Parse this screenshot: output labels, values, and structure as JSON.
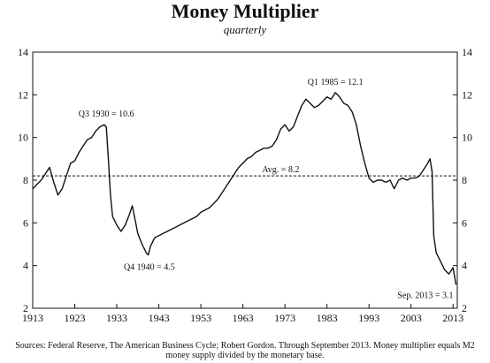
{
  "chart_data": {
    "type": "line",
    "title": "Money Multiplier",
    "subtitle": "quarterly",
    "x_ticks": [
      1913,
      1923,
      1933,
      1943,
      1953,
      1963,
      1973,
      1983,
      1993,
      2003,
      2013
    ],
    "y_ticks": [
      2,
      4,
      6,
      8,
      10,
      12,
      14
    ],
    "xlim": [
      1913,
      2014
    ],
    "ylim": [
      2,
      14
    ],
    "series": [
      {
        "values": [
          [
            1913,
            7.6
          ],
          [
            1914,
            7.8
          ],
          [
            1915,
            8.0
          ],
          [
            1916,
            8.3
          ],
          [
            1917,
            8.6
          ],
          [
            1918,
            7.9
          ],
          [
            1919,
            7.3
          ],
          [
            1920,
            7.6
          ],
          [
            1921,
            8.2
          ],
          [
            1922,
            8.8
          ],
          [
            1923,
            8.9
          ],
          [
            1924,
            9.3
          ],
          [
            1925,
            9.6
          ],
          [
            1926,
            9.9
          ],
          [
            1927,
            10.0
          ],
          [
            1928,
            10.3
          ],
          [
            1929,
            10.5
          ],
          [
            1930,
            10.6
          ],
          [
            1930.5,
            10.5
          ],
          [
            1931,
            9.0
          ],
          [
            1931.5,
            7.3
          ],
          [
            1932,
            6.3
          ],
          [
            1933,
            5.9
          ],
          [
            1934,
            5.6
          ],
          [
            1935,
            5.9
          ],
          [
            1936,
            6.4
          ],
          [
            1936.7,
            6.8
          ],
          [
            1937.3,
            6.2
          ],
          [
            1938,
            5.5
          ],
          [
            1939,
            5.0
          ],
          [
            1940,
            4.6
          ],
          [
            1940.5,
            4.5
          ],
          [
            1941,
            4.9
          ],
          [
            1942,
            5.3
          ],
          [
            1943,
            5.4
          ],
          [
            1944,
            5.5
          ],
          [
            1945,
            5.6
          ],
          [
            1946,
            5.7
          ],
          [
            1947,
            5.8
          ],
          [
            1948,
            5.9
          ],
          [
            1949,
            6.0
          ],
          [
            1950,
            6.1
          ],
          [
            1951,
            6.2
          ],
          [
            1952,
            6.3
          ],
          [
            1953,
            6.5
          ],
          [
            1954,
            6.6
          ],
          [
            1955,
            6.7
          ],
          [
            1956,
            6.9
          ],
          [
            1957,
            7.1
          ],
          [
            1958,
            7.4
          ],
          [
            1959,
            7.7
          ],
          [
            1960,
            8.0
          ],
          [
            1961,
            8.3
          ],
          [
            1962,
            8.6
          ],
          [
            1963,
            8.8
          ],
          [
            1964,
            9.0
          ],
          [
            1965,
            9.1
          ],
          [
            1966,
            9.3
          ],
          [
            1967,
            9.4
          ],
          [
            1968,
            9.5
          ],
          [
            1969,
            9.5
          ],
          [
            1970,
            9.6
          ],
          [
            1971,
            9.9
          ],
          [
            1972,
            10.4
          ],
          [
            1973,
            10.6
          ],
          [
            1974,
            10.3
          ],
          [
            1975,
            10.5
          ],
          [
            1976,
            11.0
          ],
          [
            1977,
            11.5
          ],
          [
            1978,
            11.8
          ],
          [
            1979,
            11.6
          ],
          [
            1980,
            11.4
          ],
          [
            1981,
            11.5
          ],
          [
            1982,
            11.7
          ],
          [
            1983,
            11.9
          ],
          [
            1984,
            11.8
          ],
          [
            1985,
            12.1
          ],
          [
            1986,
            11.9
          ],
          [
            1987,
            11.6
          ],
          [
            1988,
            11.5
          ],
          [
            1989,
            11.2
          ],
          [
            1990,
            10.6
          ],
          [
            1991,
            9.6
          ],
          [
            1992,
            8.8
          ],
          [
            1993,
            8.1
          ],
          [
            1994,
            7.9
          ],
          [
            1995,
            8.0
          ],
          [
            1996,
            8.0
          ],
          [
            1997,
            7.9
          ],
          [
            1998,
            8.0
          ],
          [
            1999,
            7.6
          ],
          [
            2000,
            8.0
          ],
          [
            2001,
            8.1
          ],
          [
            2002,
            8.0
          ],
          [
            2003,
            8.1
          ],
          [
            2004,
            8.1
          ],
          [
            2005,
            8.2
          ],
          [
            2006,
            8.5
          ],
          [
            2007,
            8.8
          ],
          [
            2007.5,
            9.0
          ],
          [
            2008,
            8.4
          ],
          [
            2008.4,
            5.4
          ],
          [
            2009,
            4.6
          ],
          [
            2010,
            4.2
          ],
          [
            2011,
            3.8
          ],
          [
            2012,
            3.6
          ],
          [
            2013,
            3.9
          ],
          [
            2013.7,
            3.1
          ]
        ]
      }
    ],
    "reference_line": {
      "value": 8.2,
      "label": "Avg. = 8.2"
    },
    "annotations": [
      {
        "label": "Q3 1930 = 10.6",
        "x": 1930.5,
        "y": 10.6
      },
      {
        "label": "Q4 1940 = 4.5",
        "x": 1940.75,
        "y": 4.5
      },
      {
        "label": "Q1 1985 = 12.1",
        "x": 1985,
        "y": 12.1
      },
      {
        "label": "Sep. 2013 = 3.1",
        "x": 2013.7,
        "y": 3.1
      }
    ],
    "grid": false,
    "colors": {
      "line": "#111111"
    }
  },
  "source_text": "Sources: Federal Reserve, The American Business Cycle; Robert Gordon. Through September 2013. Money multiplier equals M2 money supply divided by the monetary base."
}
